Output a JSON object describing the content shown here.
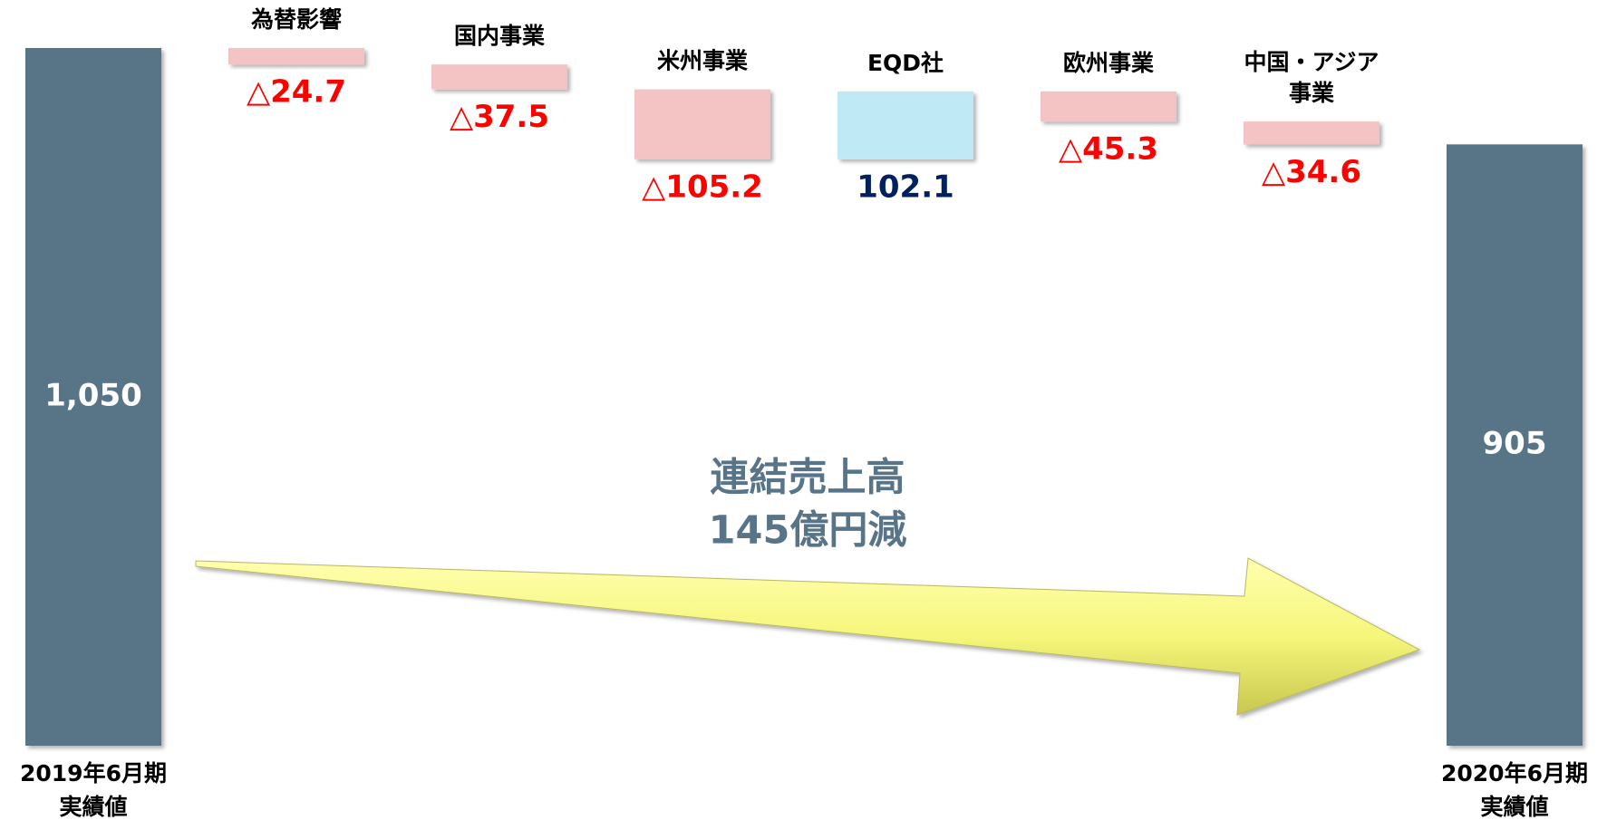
{
  "chart_data": {
    "type": "waterfall",
    "categories": [
      [
        "2019年6月期",
        "実績値"
      ],
      [
        "為替影響"
      ],
      [
        "国内事業"
      ],
      [
        "米州事業"
      ],
      [
        "EQD社"
      ],
      [
        "欧州事業"
      ],
      [
        "中国・アジア",
        "事業"
      ],
      [
        "2020年6月期",
        "実績値"
      ]
    ],
    "values": [
      1050,
      -24.7,
      -37.5,
      -105.2,
      102.1,
      -45.3,
      -34.6,
      905
    ],
    "value_labels": [
      "1,050",
      "△24.7",
      "△37.5",
      "△105.2",
      "102.1",
      "△45.3",
      "△34.6",
      "905"
    ],
    "colors": {
      "total": "#587488",
      "decrease": "#f4c4c4",
      "increase": "#bfe9f4",
      "decrease_label": "#ff0000",
      "increase_label": "#002060",
      "total_label": "#ffffff"
    },
    "annotation": [
      "連結売上高",
      "145億円減"
    ]
  }
}
